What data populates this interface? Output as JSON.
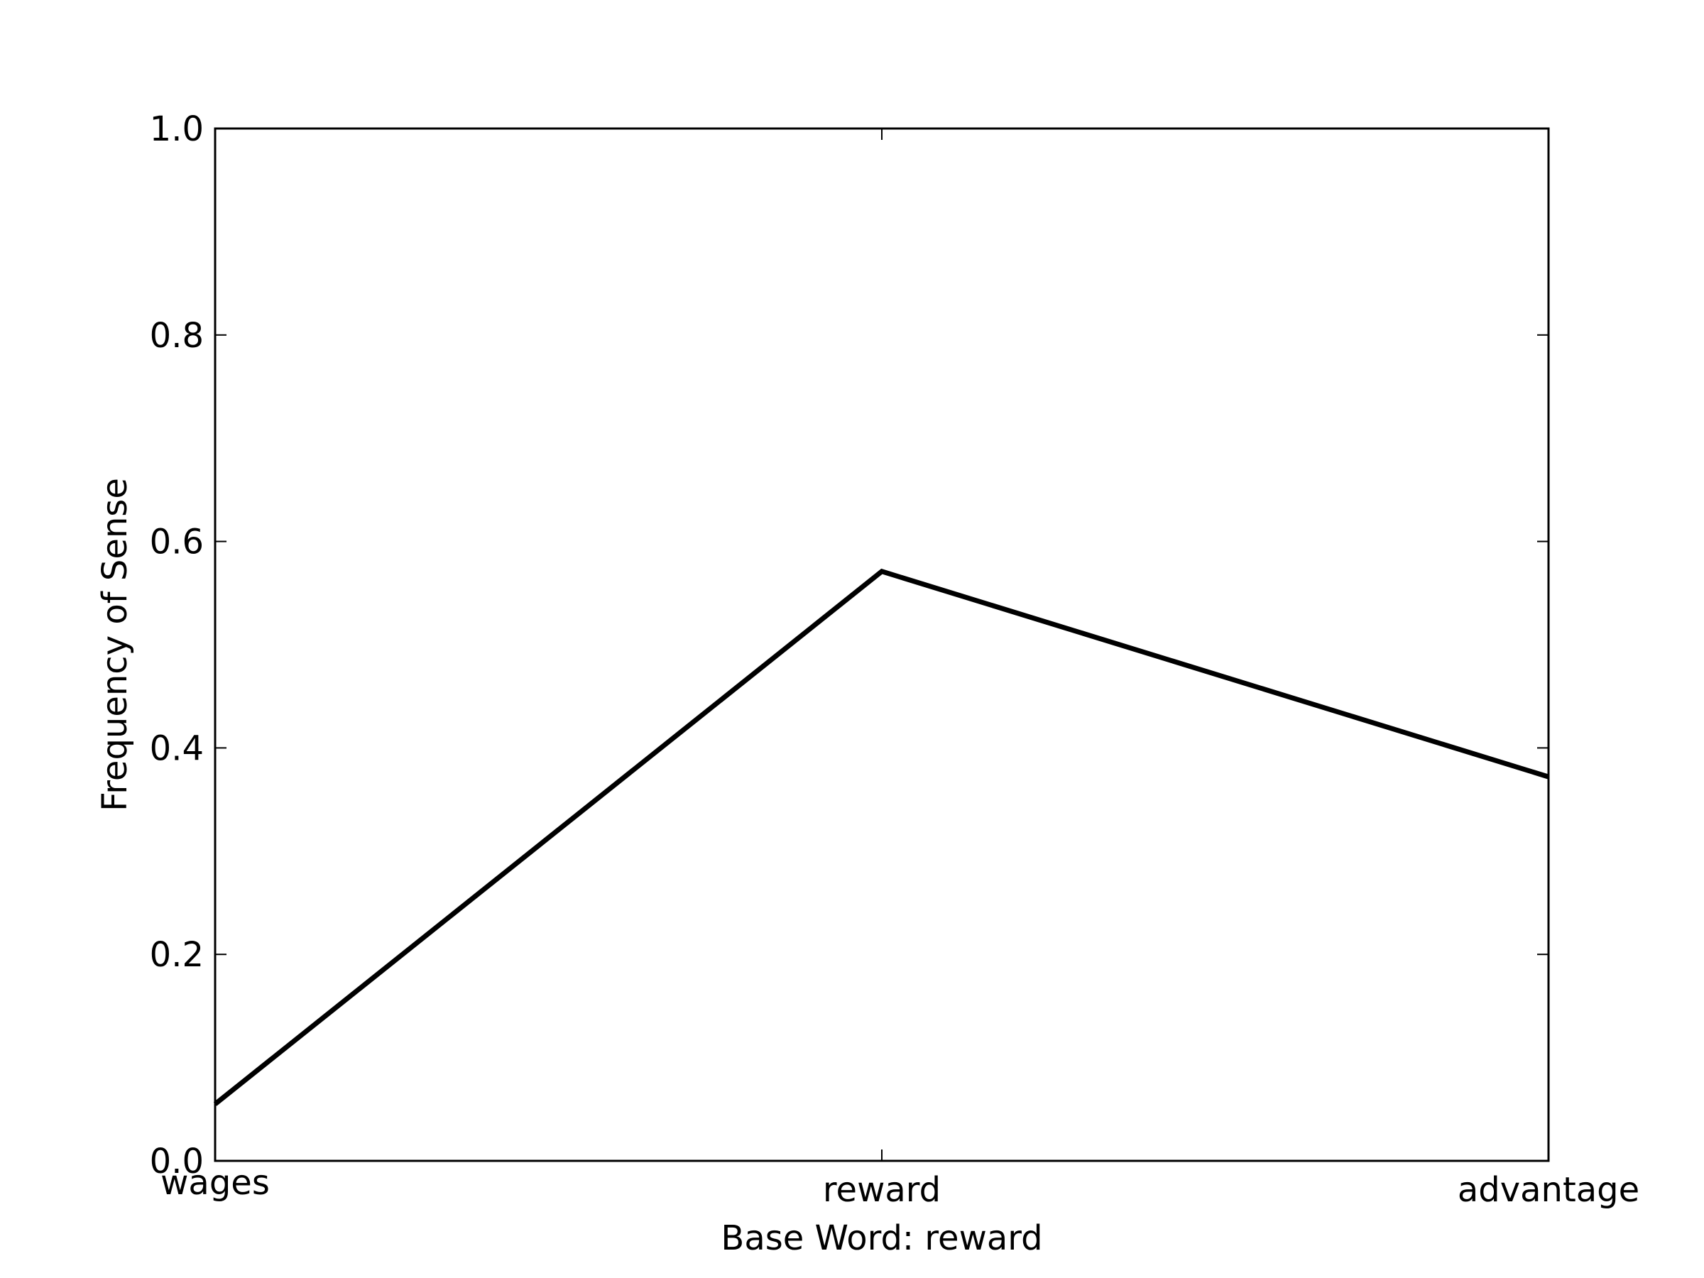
{
  "chart_data": {
    "type": "line",
    "categories": [
      "wages",
      "reward",
      "advantage"
    ],
    "series": [
      {
        "values": [
          0.055,
          0.571,
          0.372
        ]
      }
    ],
    "xlabel": "Base Word: reward",
    "ylabel": "Frequency of Sense",
    "ylim": [
      0,
      1
    ],
    "yticks": [
      "0.0",
      "0.2",
      "0.4",
      "0.6",
      "0.8",
      "1.0"
    ],
    "grid": false,
    "colors": {
      "line": "#000000",
      "axes": "#000000",
      "background": "#ffffff"
    }
  }
}
